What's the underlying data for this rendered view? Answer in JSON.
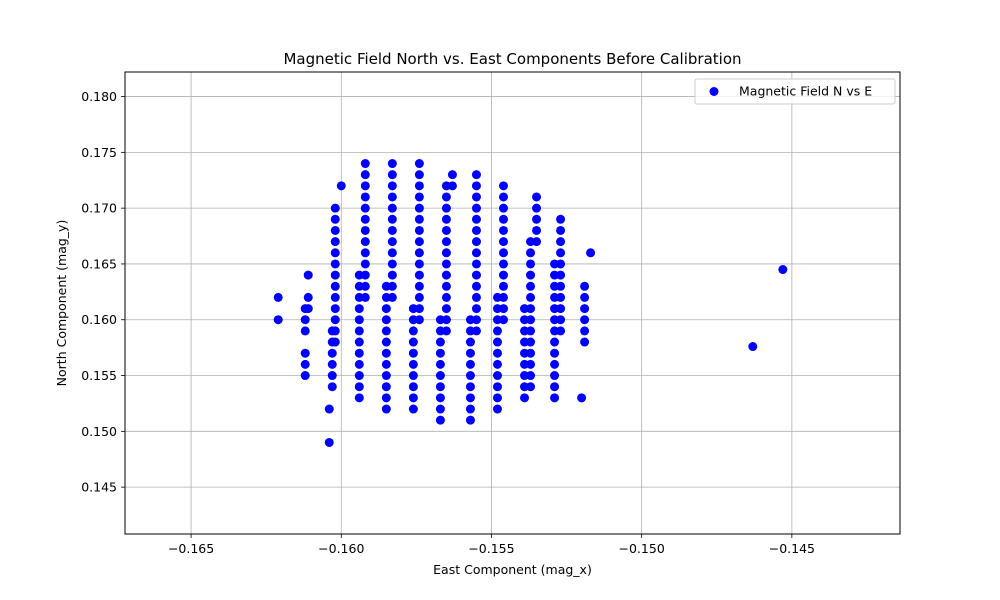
{
  "chart_data": {
    "type": "scatter",
    "title": "Magnetic Field North vs. East Components Before Calibration",
    "xlabel": "East Component (mag_x)",
    "ylabel": "North Component (mag_y)",
    "xlim": [
      -0.1672,
      -0.1414
    ],
    "ylim": [
      0.1408,
      0.1822
    ],
    "xticks": [
      -0.165,
      -0.16,
      -0.155,
      -0.15,
      -0.145
    ],
    "xtick_labels": [
      "−0.165",
      "−0.160",
      "−0.155",
      "−0.150",
      "−0.145"
    ],
    "yticks": [
      0.145,
      0.15,
      0.155,
      0.16,
      0.165,
      0.17,
      0.175,
      0.18
    ],
    "ytick_labels": [
      "0.145",
      "0.150",
      "0.155",
      "0.160",
      "0.165",
      "0.170",
      "0.175",
      "0.180"
    ],
    "grid": true,
    "legend_position": "top-right",
    "series": [
      {
        "name": "Magnetic Field N vs E",
        "color": "#0000ff",
        "columns": [
          {
            "x": -0.1621,
            "y": [
              0.16,
              0.162
            ]
          },
          {
            "x": -0.1612,
            "y": [
              0.155,
              0.156,
              0.157,
              0.159,
              0.16,
              0.161
            ]
          },
          {
            "x": -0.1611,
            "y": [
              0.161,
              0.162,
              0.164
            ]
          },
          {
            "x": -0.1604,
            "y": [
              0.149,
              0.152
            ]
          },
          {
            "x": -0.1603,
            "y": [
              0.154,
              0.155,
              0.156,
              0.157,
              0.158,
              0.159
            ]
          },
          {
            "x": -0.1602,
            "y": [
              0.158,
              0.159,
              0.16,
              0.161,
              0.162,
              0.163,
              0.164,
              0.165,
              0.166,
              0.167,
              0.168,
              0.169,
              0.17
            ]
          },
          {
            "x": -0.16,
            "y": [
              0.172
            ]
          },
          {
            "x": -0.1594,
            "y": [
              0.153,
              0.154,
              0.155,
              0.156,
              0.157,
              0.158,
              0.159,
              0.16,
              0.161,
              0.162,
              0.163,
              0.164
            ]
          },
          {
            "x": -0.1592,
            "y": [
              0.162,
              0.163,
              0.164,
              0.165,
              0.166,
              0.167,
              0.168,
              0.169,
              0.17,
              0.171,
              0.172,
              0.173,
              0.174
            ]
          },
          {
            "x": -0.1585,
            "y": [
              0.152,
              0.153,
              0.154,
              0.155,
              0.156,
              0.157,
              0.158,
              0.159,
              0.16,
              0.161,
              0.162,
              0.163
            ]
          },
          {
            "x": -0.1583,
            "y": [
              0.162,
              0.163,
              0.164,
              0.165,
              0.166,
              0.167,
              0.168,
              0.169,
              0.17,
              0.171,
              0.172,
              0.173,
              0.174
            ]
          },
          {
            "x": -0.1576,
            "y": [
              0.152,
              0.153,
              0.154,
              0.155,
              0.156,
              0.157,
              0.158,
              0.159,
              0.16,
              0.161
            ]
          },
          {
            "x": -0.1574,
            "y": [
              0.16,
              0.161,
              0.162,
              0.163,
              0.164,
              0.165,
              0.166,
              0.167,
              0.168,
              0.169,
              0.17,
              0.171,
              0.172,
              0.173,
              0.174
            ]
          },
          {
            "x": -0.1567,
            "y": [
              0.151,
              0.152,
              0.153,
              0.154,
              0.155,
              0.156,
              0.157,
              0.158,
              0.159,
              0.16
            ]
          },
          {
            "x": -0.1565,
            "y": [
              0.159,
              0.16,
              0.161,
              0.162,
              0.163,
              0.164,
              0.165,
              0.166,
              0.167,
              0.168,
              0.169,
              0.17,
              0.171,
              0.172
            ]
          },
          {
            "x": -0.1563,
            "y": [
              0.172,
              0.173
            ]
          },
          {
            "x": -0.1557,
            "y": [
              0.151,
              0.152,
              0.153,
              0.154,
              0.155,
              0.156,
              0.157,
              0.158,
              0.159,
              0.16
            ]
          },
          {
            "x": -0.1555,
            "y": [
              0.159,
              0.16,
              0.161,
              0.162,
              0.163,
              0.164,
              0.165,
              0.166,
              0.167,
              0.168,
              0.169,
              0.17,
              0.171,
              0.172,
              0.173
            ]
          },
          {
            "x": -0.1548,
            "y": [
              0.152,
              0.153,
              0.154,
              0.155,
              0.156,
              0.157,
              0.158,
              0.159,
              0.16,
              0.161,
              0.162
            ]
          },
          {
            "x": -0.1546,
            "y": [
              0.16,
              0.161,
              0.162,
              0.163,
              0.164,
              0.165,
              0.166,
              0.167,
              0.168,
              0.169,
              0.17,
              0.171,
              0.172
            ]
          },
          {
            "x": -0.1539,
            "y": [
              0.153,
              0.154,
              0.155,
              0.156,
              0.157,
              0.158,
              0.159,
              0.16,
              0.161
            ]
          },
          {
            "x": -0.1537,
            "y": [
              0.154,
              0.155,
              0.156,
              0.157,
              0.158,
              0.159,
              0.16,
              0.161,
              0.162,
              0.163,
              0.164,
              0.165,
              0.166,
              0.167
            ]
          },
          {
            "x": -0.1535,
            "y": [
              0.167,
              0.168,
              0.169,
              0.17,
              0.171
            ]
          },
          {
            "x": -0.1529,
            "y": [
              0.153,
              0.154,
              0.155,
              0.156,
              0.157,
              0.158,
              0.159,
              0.16,
              0.161,
              0.162,
              0.163,
              0.164,
              0.165
            ]
          },
          {
            "x": -0.1527,
            "y": [
              0.159,
              0.16,
              0.161,
              0.162,
              0.163,
              0.164,
              0.165,
              0.166,
              0.167,
              0.168,
              0.169
            ]
          },
          {
            "x": -0.152,
            "y": [
              0.153
            ]
          },
          {
            "x": -0.1519,
            "y": [
              0.158,
              0.159,
              0.16,
              0.161,
              0.162,
              0.163
            ]
          },
          {
            "x": -0.1517,
            "y": [
              0.166
            ]
          },
          {
            "x": -0.1463,
            "y": [
              0.1576
            ]
          },
          {
            "x": -0.1453,
            "y": [
              0.1645
            ]
          }
        ]
      }
    ]
  }
}
